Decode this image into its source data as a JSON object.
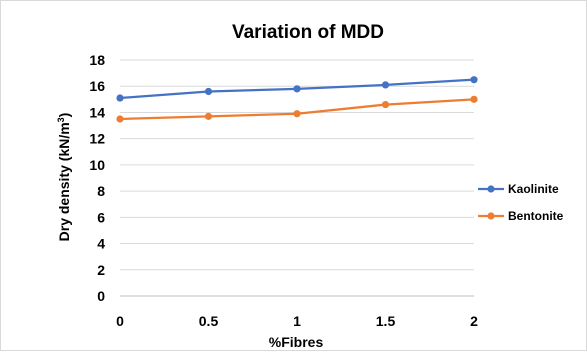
{
  "chart_data": {
    "type": "line",
    "title": "Variation of MDD",
    "xlabel": "%Fibres",
    "ylabel": "Dry density (kN/m³)",
    "ylabel_parts": {
      "main": "Dry density (kN/m",
      "sup": "3",
      "end": ")"
    },
    "x": [
      0,
      0.5,
      1,
      1.5,
      2
    ],
    "x_tick_labels": [
      "0",
      "0.5",
      "1",
      "1.5",
      "2"
    ],
    "ylim": [
      0,
      18
    ],
    "y_ticks": [
      0,
      2,
      4,
      6,
      8,
      10,
      12,
      14,
      16,
      18
    ],
    "grid": "horizontal",
    "legend_position": "right",
    "series": [
      {
        "name": "Kaolinite",
        "color": "#4472c4",
        "values": [
          15.1,
          15.6,
          15.8,
          16.1,
          16.5
        ]
      },
      {
        "name": "Bentonite",
        "color": "#ed7d31",
        "values": [
          13.5,
          13.7,
          13.9,
          14.6,
          15.0
        ]
      }
    ]
  }
}
